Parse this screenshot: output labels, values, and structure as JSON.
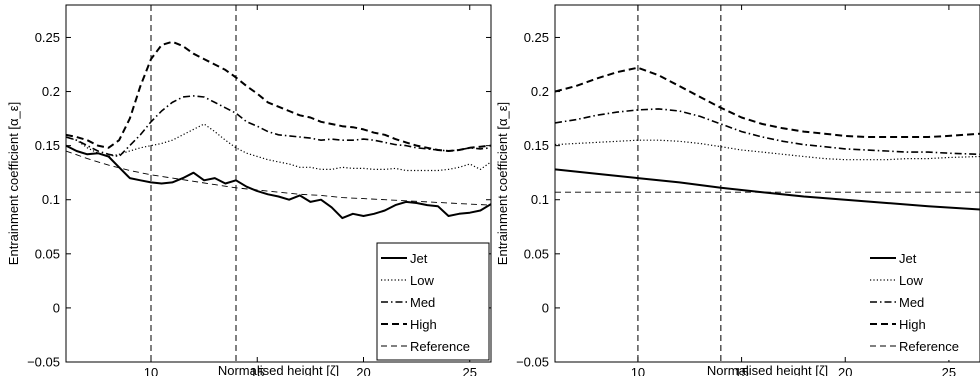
{
  "chart_data": [
    {
      "type": "line",
      "title": "",
      "xlabel": "Normalised height [ζ]",
      "ylabel": "Entrainment coefficient [α_ε]",
      "xlim": [
        6,
        26
      ],
      "ylim": [
        -0.05,
        0.28
      ],
      "xticks": [
        "10",
        "15",
        "20",
        "25"
      ],
      "yticks": [
        "−0.05",
        "0",
        "0.05",
        "0.1",
        "0.15",
        "0.2",
        "0.25"
      ],
      "vlines": [
        10,
        14
      ],
      "legend_position": "bottom-right",
      "series": [
        {
          "name": "Jet",
          "style": "solid",
          "x": [
            6,
            6.5,
            7,
            7.5,
            8,
            8.5,
            9,
            9.5,
            10,
            10.5,
            11,
            11.5,
            12,
            12.5,
            13,
            13.5,
            14,
            14.5,
            15,
            15.5,
            16,
            16.5,
            17,
            17.5,
            18,
            18.5,
            19,
            19.5,
            20,
            20.5,
            21,
            21.5,
            22,
            22.5,
            23,
            23.5,
            24,
            24.5,
            25,
            25.5,
            26
          ],
          "y": [
            0.15,
            0.145,
            0.142,
            0.143,
            0.14,
            0.13,
            0.12,
            0.118,
            0.116,
            0.115,
            0.116,
            0.12,
            0.125,
            0.118,
            0.12,
            0.115,
            0.118,
            0.112,
            0.108,
            0.105,
            0.103,
            0.1,
            0.104,
            0.098,
            0.1,
            0.093,
            0.083,
            0.087,
            0.085,
            0.087,
            0.09,
            0.095,
            0.098,
            0.097,
            0.095,
            0.094,
            0.085,
            0.087,
            0.088,
            0.09,
            0.096
          ]
        },
        {
          "name": "Low",
          "style": "dotted",
          "x": [
            6,
            6.5,
            7,
            7.5,
            8,
            8.5,
            9,
            9.5,
            10,
            10.5,
            11,
            11.5,
            12,
            12.5,
            13,
            13.5,
            14,
            14.5,
            15,
            15.5,
            16,
            16.5,
            17,
            17.5,
            18,
            18.5,
            19,
            19.5,
            20,
            20.5,
            21,
            21.5,
            22,
            22.5,
            23,
            23.5,
            24,
            24.5,
            25,
            25.5,
            26
          ],
          "y": [
            0.158,
            0.155,
            0.148,
            0.143,
            0.14,
            0.142,
            0.145,
            0.148,
            0.15,
            0.152,
            0.155,
            0.16,
            0.165,
            0.17,
            0.163,
            0.155,
            0.148,
            0.143,
            0.14,
            0.137,
            0.135,
            0.133,
            0.13,
            0.13,
            0.128,
            0.128,
            0.13,
            0.129,
            0.129,
            0.128,
            0.128,
            0.129,
            0.127,
            0.127,
            0.127,
            0.127,
            0.128,
            0.13,
            0.133,
            0.128,
            0.135
          ]
        },
        {
          "name": "Med",
          "style": "dashdot",
          "x": [
            6,
            6.5,
            7,
            7.5,
            8,
            8.5,
            9,
            9.5,
            10,
            10.5,
            11,
            11.5,
            12,
            12.5,
            13,
            13.5,
            14,
            14.5,
            15,
            15.5,
            16,
            16.5,
            17,
            17.5,
            18,
            18.5,
            19,
            19.5,
            20,
            20.5,
            21,
            21.5,
            22,
            22.5,
            23,
            23.5,
            24,
            24.5,
            25,
            25.5,
            26
          ],
          "y": [
            0.158,
            0.155,
            0.15,
            0.145,
            0.142,
            0.14,
            0.15,
            0.16,
            0.172,
            0.182,
            0.19,
            0.195,
            0.196,
            0.195,
            0.19,
            0.185,
            0.18,
            0.172,
            0.168,
            0.163,
            0.16,
            0.159,
            0.158,
            0.157,
            0.155,
            0.156,
            0.155,
            0.155,
            0.156,
            0.155,
            0.153,
            0.151,
            0.15,
            0.148,
            0.147,
            0.146,
            0.145,
            0.146,
            0.148,
            0.147,
            0.148
          ]
        },
        {
          "name": "High",
          "style": "dashed",
          "x": [
            6,
            6.5,
            7,
            7.5,
            8,
            8.5,
            9,
            9.5,
            10,
            10.5,
            11,
            11.5,
            12,
            12.5,
            13,
            13.5,
            14,
            14.5,
            15,
            15.5,
            16,
            16.5,
            17,
            17.5,
            18,
            18.5,
            19,
            19.5,
            20,
            20.5,
            21,
            21.5,
            22,
            22.5,
            23,
            23.5,
            24,
            24.5,
            25,
            25.5,
            26
          ],
          "y": [
            0.16,
            0.158,
            0.155,
            0.15,
            0.148,
            0.155,
            0.175,
            0.205,
            0.23,
            0.243,
            0.246,
            0.242,
            0.235,
            0.23,
            0.225,
            0.22,
            0.213,
            0.205,
            0.198,
            0.19,
            0.186,
            0.182,
            0.178,
            0.176,
            0.172,
            0.17,
            0.168,
            0.167,
            0.165,
            0.162,
            0.16,
            0.156,
            0.153,
            0.15,
            0.148,
            0.146,
            0.145,
            0.146,
            0.148,
            0.149,
            0.15
          ]
        },
        {
          "name": "Reference",
          "style": "thin-dashed",
          "x": [
            6,
            7,
            8,
            9,
            10,
            11,
            12,
            13,
            14,
            15,
            16,
            17,
            18,
            19,
            20,
            21,
            22,
            23,
            24,
            25,
            26
          ],
          "y": [
            0.145,
            0.138,
            0.132,
            0.127,
            0.123,
            0.12,
            0.117,
            0.114,
            0.111,
            0.109,
            0.107,
            0.105,
            0.104,
            0.102,
            0.101,
            0.1,
            0.099,
            0.098,
            0.097,
            0.096,
            0.095
          ]
        }
      ]
    },
    {
      "type": "line",
      "title": "",
      "xlabel": "Normalised height [ζ]",
      "ylabel": "Entrainment coefficient [α_ε]",
      "xlim": [
        6,
        26.5
      ],
      "ylim": [
        -0.05,
        0.28
      ],
      "xticks": [
        "10",
        "15",
        "20",
        "25"
      ],
      "yticks": [
        "−0.05",
        "0",
        "0.05",
        "0.1",
        "0.15",
        "0.2",
        "0.25"
      ],
      "vlines": [
        10,
        14
      ],
      "legend_position": "bottom-right",
      "series": [
        {
          "name": "Jet",
          "style": "solid",
          "x": [
            6,
            8,
            10,
            12,
            14,
            16,
            18,
            20,
            22,
            24,
            26.5
          ],
          "y": [
            0.128,
            0.124,
            0.12,
            0.116,
            0.111,
            0.107,
            0.103,
            0.1,
            0.097,
            0.094,
            0.091
          ]
        },
        {
          "name": "Low",
          "style": "dotted",
          "x": [
            6,
            7,
            8,
            9,
            10,
            11,
            12,
            13,
            14,
            15,
            16,
            17,
            18,
            19,
            20,
            21,
            22,
            23,
            24,
            25,
            26.5
          ],
          "y": [
            0.151,
            0.152,
            0.153,
            0.154,
            0.155,
            0.155,
            0.154,
            0.152,
            0.149,
            0.146,
            0.144,
            0.142,
            0.14,
            0.138,
            0.137,
            0.137,
            0.137,
            0.138,
            0.138,
            0.139,
            0.14
          ]
        },
        {
          "name": "Med",
          "style": "dashdot",
          "x": [
            6,
            7,
            8,
            9,
            10,
            11,
            12,
            13,
            14,
            15,
            16,
            17,
            18,
            19,
            20,
            21,
            22,
            23,
            24,
            25,
            26.5
          ],
          "y": [
            0.171,
            0.174,
            0.178,
            0.181,
            0.183,
            0.184,
            0.182,
            0.177,
            0.17,
            0.163,
            0.158,
            0.154,
            0.151,
            0.149,
            0.147,
            0.146,
            0.145,
            0.144,
            0.144,
            0.143,
            0.142
          ]
        },
        {
          "name": "High",
          "style": "dashed",
          "x": [
            6,
            7,
            8,
            9,
            10,
            11,
            12,
            13,
            14,
            15,
            16,
            17,
            18,
            19,
            20,
            21,
            22,
            23,
            24,
            25,
            26.5
          ],
          "y": [
            0.2,
            0.205,
            0.212,
            0.218,
            0.222,
            0.215,
            0.205,
            0.195,
            0.185,
            0.176,
            0.17,
            0.166,
            0.163,
            0.161,
            0.159,
            0.158,
            0.158,
            0.158,
            0.158,
            0.159,
            0.161
          ]
        },
        {
          "name": "Reference",
          "style": "thin-dashed",
          "x": [
            6,
            26.5
          ],
          "y": [
            0.107,
            0.107
          ]
        }
      ]
    }
  ]
}
